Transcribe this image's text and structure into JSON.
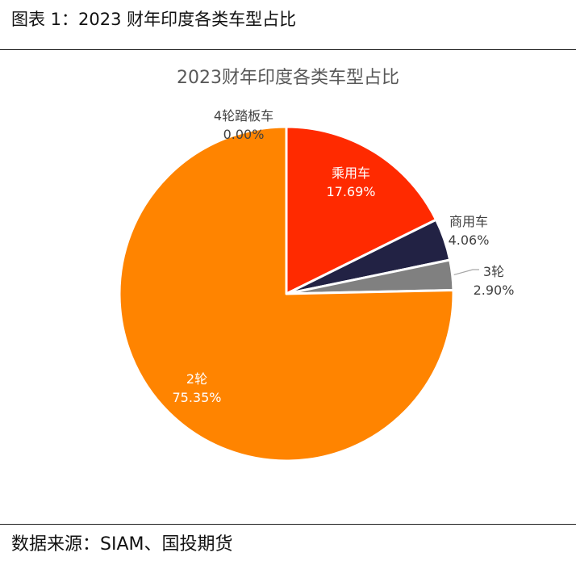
{
  "figure": {
    "caption": "图表 1：2023 财年印度各类车型占比",
    "source": "数据来源：SIAM、国投期货"
  },
  "chart_data": {
    "type": "pie",
    "title": "2023财年印度各类车型占比",
    "categories": [
      "4轮踏板车",
      "乘用车",
      "商用车",
      "3轮",
      "2轮"
    ],
    "values": [
      0.0,
      17.69,
      4.06,
      2.9,
      75.35
    ],
    "value_labels": [
      "0.00%",
      "17.69%",
      "4.06%",
      "2.90%",
      "75.35%"
    ],
    "colors": [
      "#2b2b2b",
      "#ff2a00",
      "#222244",
      "#808080",
      "#ff8400"
    ],
    "start_angle": "12 o'clock",
    "direction": "clockwise",
    "legend": "none"
  }
}
